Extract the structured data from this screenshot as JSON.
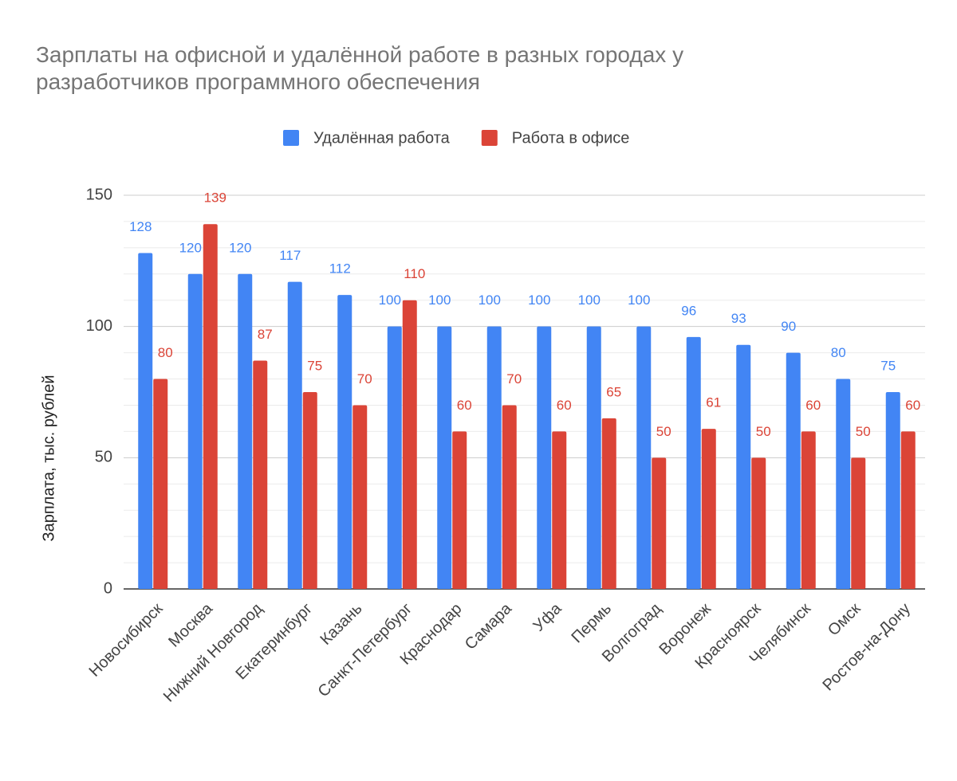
{
  "chart_data": {
    "type": "bar",
    "title": "Зарплаты на офисной и удалённой работе в разных городах у разработчиков программного обеспечения",
    "y_label": "Зарплата, тыс. рублей",
    "categories": [
      "Новосибирск",
      "Москва",
      "Нижний Новгород",
      "Екатеринбург",
      "Казань",
      "Санкт-Петербург",
      "Краснодар",
      "Самара",
      "Уфа",
      "Пермь",
      "Волгоград",
      "Воронеж",
      "Красноярск",
      "Челябинск",
      "Омск",
      "Ростов-на-Дону"
    ],
    "series": [
      {
        "name": "Удалённая работа",
        "color": "#4285f4",
        "values": [
          128,
          120,
          120,
          117,
          112,
          100,
          100,
          100,
          100,
          100,
          100,
          96,
          93,
          90,
          80,
          75
        ]
      },
      {
        "name": "Работа в офисе",
        "color": "#db4437",
        "values": [
          80,
          139,
          87,
          75,
          70,
          110,
          60,
          70,
          60,
          65,
          50,
          61,
          50,
          60,
          50,
          60
        ]
      }
    ],
    "ylim": [
      0,
      150
    ],
    "yticks": [
      0,
      50,
      100,
      150
    ],
    "minor_yticks": [
      10,
      20,
      30,
      40,
      60,
      70,
      80,
      90,
      110,
      120,
      130,
      140
    ],
    "grid": true,
    "legend": "top"
  }
}
